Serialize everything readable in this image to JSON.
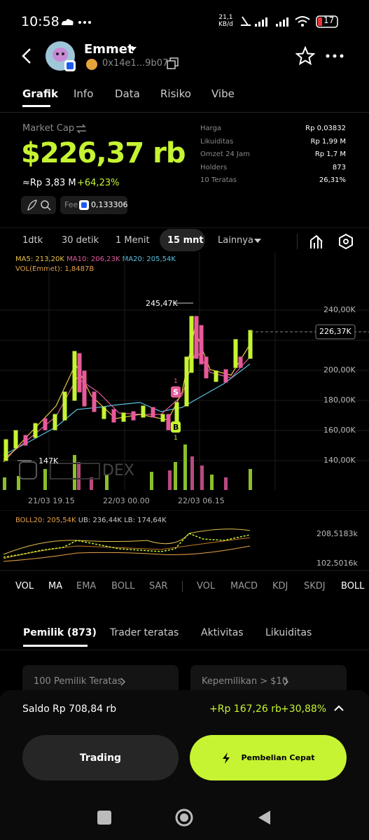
{
  "status": {
    "time": "10:58",
    "net_speed": "21,1",
    "net_unit": "KB/d",
    "battery": "17"
  },
  "header": {
    "name": "Emmet",
    "address": "0x14e1...9b07"
  },
  "tabs": [
    "Grafik",
    "Info",
    "Data",
    "Risiko",
    "Vibe"
  ],
  "summary": {
    "market_cap_label": "Market Cap",
    "market_cap": "$226,37 rb",
    "rp_value": "≈Rp 3,83 M",
    "change": "+64,23%",
    "fee_label": "Fee",
    "fee": "0,133306"
  },
  "stats": [
    {
      "label": "Harga",
      "value": "Rp 0,03832"
    },
    {
      "label": "Likuiditas",
      "value": "Rp 1,99 M"
    },
    {
      "label": "Omzet 24 Jam",
      "value": "Rp 1,7 M"
    },
    {
      "label": "Holders",
      "value": "873"
    },
    {
      "label": "10 Teratas",
      "value": "26,31%"
    }
  ],
  "intervals": [
    "1dtk",
    "30 detik",
    "1 Menit",
    "15 mnt",
    "Lainnya"
  ],
  "chart": {
    "ma": [
      "MA5: 213,20K",
      "MA10: 206,23K",
      "MA20: 205,54K"
    ],
    "vol": "VOL(Emmet): 1,8487B",
    "price_ticks": [
      "240,00K",
      "200,00K",
      "180,00K",
      "160,00K",
      "140,00K"
    ],
    "high_label": "245,47K",
    "current": "226,37K",
    "low_label": "147K",
    "markers": [
      "1",
      "S",
      "B",
      "1"
    ],
    "watermark": "DEX",
    "time_ticks": [
      "21/03 19.15",
      "22/03 00.00",
      "22/03 06.15"
    ],
    "boll": [
      "BOLL20: 205,54K",
      "UB: 236,44K",
      "LB: 174,64K"
    ],
    "boll_ticks": [
      "208,5183k",
      "102,5016k"
    ]
  },
  "indicators": {
    "main": [
      "VOL",
      "MA",
      "EMA",
      "BOLL",
      "SAR"
    ],
    "sub": [
      "VOL",
      "MACD",
      "KDJ",
      "SKDJ",
      "BOLL"
    ]
  },
  "holder_tabs": [
    "Pemilik (873)",
    "Trader teratas",
    "Aktivitas",
    "Likuiditas"
  ],
  "cards": [
    "100 Pemilik Teratas",
    "Kepemilikan > $10"
  ],
  "balance": {
    "label": "Saldo",
    "value": "Rp 708,84 rb",
    "pnl": "+Rp 167,26 rb",
    "pnl_pct": "+30,88%"
  },
  "buttons": [
    "Trading",
    "Pembelian Cepat"
  ]
}
